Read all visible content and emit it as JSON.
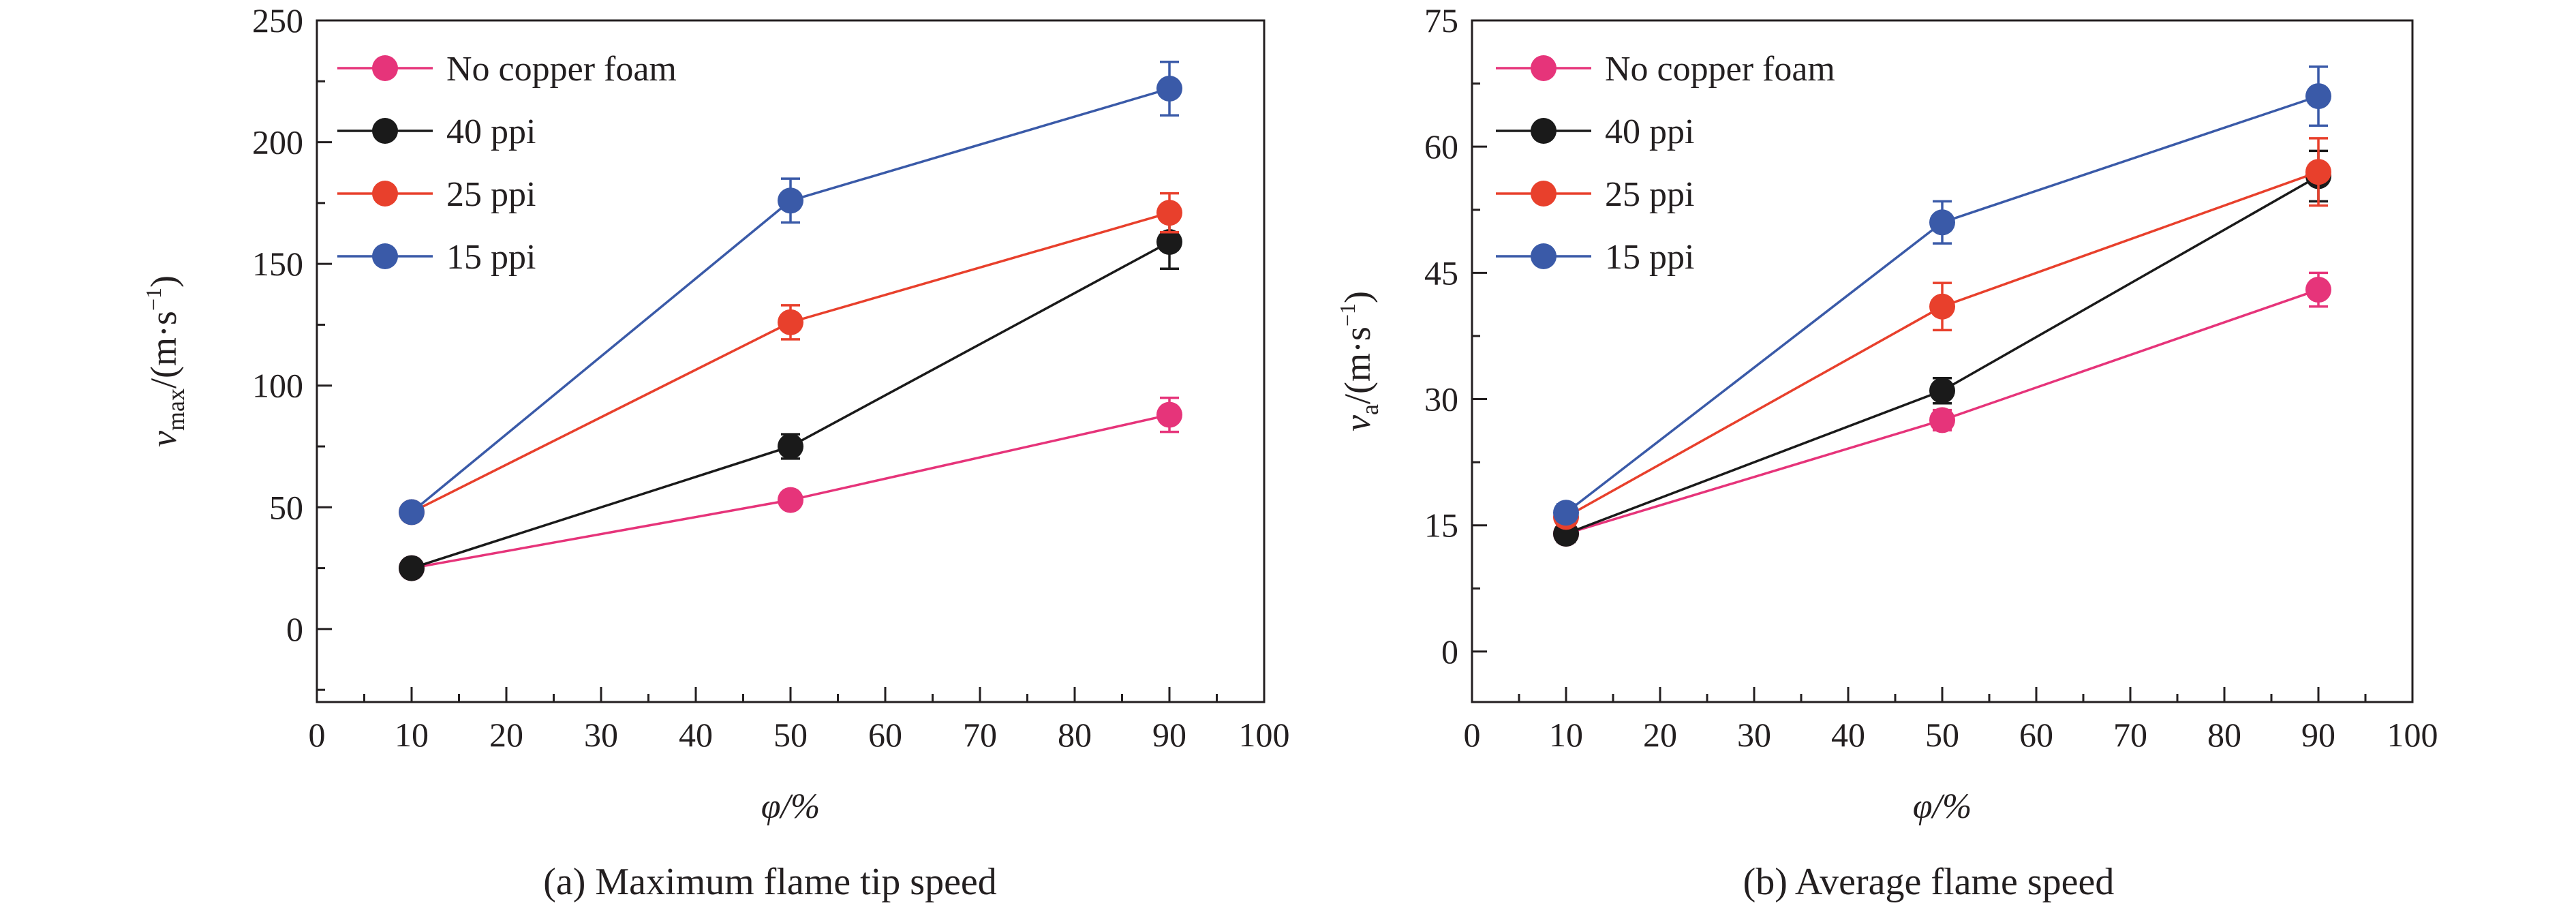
{
  "chart_data": [
    {
      "type": "line",
      "caption": "(a) Maximum flame tip speed",
      "xlabel": "φ/%",
      "ylabel_main": "v",
      "ylabel_sub": "max",
      "ylabel_unit": "/(m·s",
      "ylabel_exp": "−1",
      "ylabel_close": ")",
      "xlim": [
        0,
        100
      ],
      "ylim": [
        -30,
        250
      ],
      "xticks": [
        0,
        10,
        20,
        30,
        40,
        50,
        60,
        70,
        80,
        90,
        100
      ],
      "yticks": [
        0,
        50,
        100,
        150,
        200,
        250
      ],
      "xtick_labels": [
        "0",
        "10",
        "20",
        "30",
        "40",
        "50",
        "60",
        "70",
        "80",
        "90",
        "100"
      ],
      "ytick_labels": [
        "0",
        "50",
        "100",
        "150",
        "200",
        "250"
      ],
      "legend_position": "top-left",
      "x": [
        10,
        50,
        90
      ],
      "series": [
        {
          "name": "No copper foam",
          "color": "#e6347a",
          "values": [
            25,
            53,
            88
          ],
          "errors": [
            3,
            3,
            7
          ]
        },
        {
          "name": "40 ppi",
          "color": "#1a1a1a",
          "values": [
            25,
            75,
            159
          ],
          "errors": [
            3,
            5,
            11
          ]
        },
        {
          "name": "25 ppi",
          "color": "#e8402c",
          "values": [
            48,
            126,
            171
          ],
          "errors": [
            3,
            7,
            8
          ]
        },
        {
          "name": "15 ppi",
          "color": "#3a5aa8",
          "values": [
            48,
            176,
            222
          ],
          "errors": [
            3,
            9,
            11
          ]
        }
      ]
    },
    {
      "type": "line",
      "caption": "(b) Average flame speed",
      "xlabel": "φ/%",
      "ylabel_main": "v",
      "ylabel_sub": "a",
      "ylabel_unit": "/(m·s",
      "ylabel_exp": "−1",
      "ylabel_close": ")",
      "xlim": [
        0,
        100
      ],
      "ylim": [
        -6,
        75
      ],
      "xticks": [
        0,
        10,
        20,
        30,
        40,
        50,
        60,
        70,
        80,
        90,
        100
      ],
      "yticks": [
        0,
        15,
        30,
        45,
        60,
        75
      ],
      "xtick_labels": [
        "0",
        "10",
        "20",
        "30",
        "40",
        "50",
        "60",
        "70",
        "80",
        "90",
        "100"
      ],
      "ytick_labels": [
        "0",
        "15",
        "30",
        "45",
        "60",
        "75"
      ],
      "legend_position": "top-left",
      "x": [
        10,
        50,
        90
      ],
      "series": [
        {
          "name": "No copper foam",
          "color": "#e6347a",
          "values": [
            14,
            27.5,
            43
          ],
          "errors": [
            1,
            1.2,
            2
          ]
        },
        {
          "name": "40 ppi",
          "color": "#1a1a1a",
          "values": [
            14,
            31,
            56.5
          ],
          "errors": [
            1,
            1.5,
            3
          ]
        },
        {
          "name": "25 ppi",
          "color": "#e8402c",
          "values": [
            16,
            41,
            57
          ],
          "errors": [
            1,
            2.8,
            4
          ]
        },
        {
          "name": "15 ppi",
          "color": "#3a5aa8",
          "values": [
            16.5,
            51,
            66
          ],
          "errors": [
            1,
            2.5,
            3.5
          ]
        }
      ]
    }
  ]
}
